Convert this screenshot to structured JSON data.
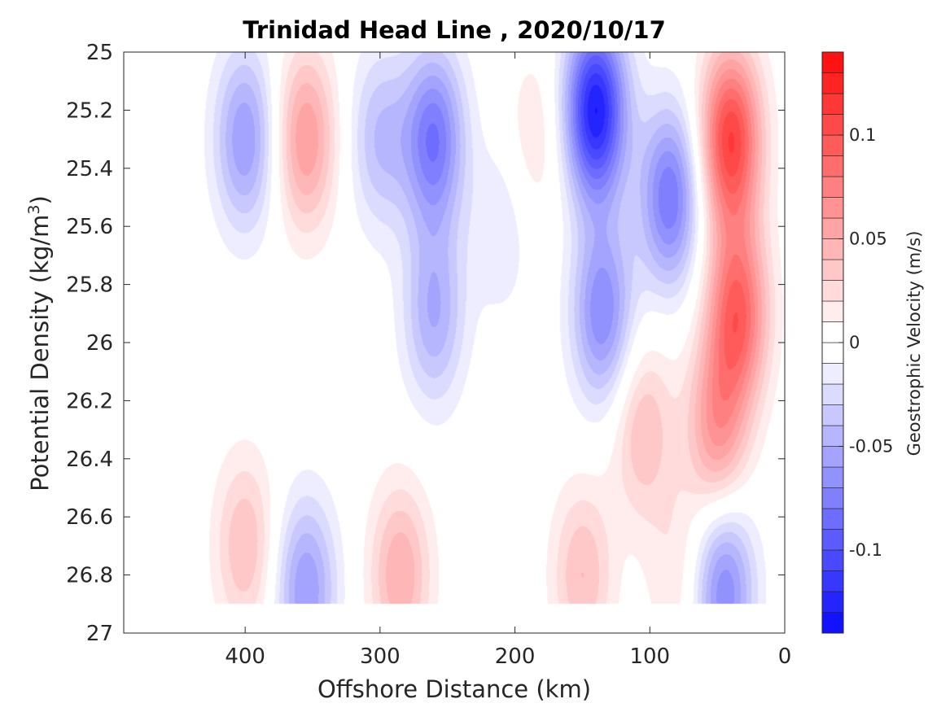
{
  "chart_data": {
    "type": "heatmap",
    "title": "Trinidad Head Line , 2020/10/17",
    "xlabel": "Offshore Distance (km)",
    "ylabel_main": "Potential Density (kg/m",
    "ylabel_sup": "3",
    "ylabel_close": ")",
    "colorbar_label": "Geostrophic Velocity (m/s)",
    "x_reversed": true,
    "xlim": [
      0,
      490
    ],
    "ylim": [
      25,
      27
    ],
    "y_reversed": true,
    "xticks": [
      400,
      300,
      200,
      100,
      0
    ],
    "yticks": [
      25,
      25.2,
      25.4,
      25.6,
      25.8,
      26,
      26.2,
      26.4,
      26.6,
      26.8,
      27
    ],
    "colorbar_range": [
      -0.14,
      0.14
    ],
    "colorbar_step": 0.01,
    "colorbar_ticks": [
      {
        "value": 0.1,
        "label": "0.1"
      },
      {
        "value": 0.05,
        "label": "0.05"
      },
      {
        "value": 0,
        "label": "0"
      },
      {
        "value": -0.05,
        "label": "-0.05"
      },
      {
        "value": -0.1,
        "label": "-0.1"
      }
    ],
    "colors": {
      "negative": "#0000ff",
      "positive": "#ff0000",
      "zero": "#ffffff"
    },
    "data_extent": {
      "density_max": 26.9
    },
    "features": [
      {
        "x": 400,
        "y": 25.3,
        "velocity": -0.06
      },
      {
        "x": 355,
        "y": 25.3,
        "velocity": 0.06
      },
      {
        "x": 300,
        "y": 25.3,
        "velocity": -0.04
      },
      {
        "x": 260,
        "y": 25.3,
        "velocity": -0.08
      },
      {
        "x": 260,
        "y": 25.9,
        "velocity": -0.05
      },
      {
        "x": 210,
        "y": 25.6,
        "velocity": -0.02
      },
      {
        "x": 185,
        "y": 25.3,
        "velocity": 0.02
      },
      {
        "x": 140,
        "y": 25.2,
        "velocity": -0.13
      },
      {
        "x": 135,
        "y": 25.9,
        "velocity": -0.07
      },
      {
        "x": 85,
        "y": 25.5,
        "velocity": -0.08
      },
      {
        "x": 40,
        "y": 25.3,
        "velocity": 0.11
      },
      {
        "x": 35,
        "y": 25.9,
        "velocity": 0.09
      },
      {
        "x": 50,
        "y": 26.3,
        "velocity": 0.06
      },
      {
        "x": 105,
        "y": 26.3,
        "velocity": 0.04
      },
      {
        "x": 400,
        "y": 26.7,
        "velocity": 0.04
      },
      {
        "x": 355,
        "y": 26.85,
        "velocity": -0.06
      },
      {
        "x": 285,
        "y": 26.8,
        "velocity": 0.05
      },
      {
        "x": 150,
        "y": 26.8,
        "velocity": 0.04
      },
      {
        "x": 45,
        "y": 26.85,
        "velocity": -0.07
      },
      {
        "x": 80,
        "y": 26.8,
        "velocity": 0.02
      }
    ]
  }
}
